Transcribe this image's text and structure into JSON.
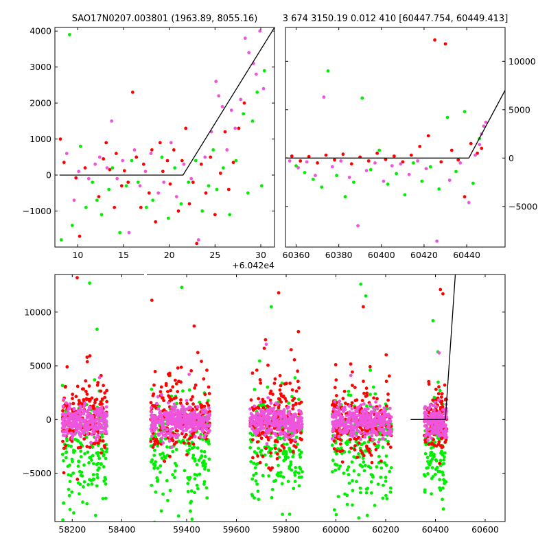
{
  "titles": {
    "left": "SAO17N0207.003801 (1963.89, 8055.16)",
    "right": "3 674 3150.19 0.012 410 [60447.754, 60449.413]"
  },
  "colors": {
    "series_a": "#ff0000",
    "series_b": "#00ee00",
    "series_c": "#ee55dd",
    "model": "#000000"
  },
  "chart_data": [
    {
      "id": "top-left",
      "type": "scatter",
      "x_offset_label": "+6.042e4",
      "x_offset": 60420,
      "xlim": [
        7.5,
        31.5
      ],
      "ylim": [
        -2000,
        4100
      ],
      "xticks": [
        10,
        15,
        20,
        25,
        30
      ],
      "xtick_labels": [
        "10",
        "15",
        "20",
        "25",
        "30"
      ],
      "yticks": [
        -1000,
        0,
        1000,
        2000,
        3000,
        4000
      ],
      "ytick_labels": [
        "−1000",
        "0",
        "1000",
        "2000",
        "3000",
        "4000"
      ],
      "ytick_side": "left",
      "model_line": {
        "x": [
          8,
          21.5,
          31.5
        ],
        "y": [
          0,
          0,
          4100
        ]
      },
      "series": [
        {
          "color_key": "series_a",
          "x": [
            8.1,
            8.5,
            9.8,
            10.2,
            10.8,
            12.3,
            12.8,
            13.1,
            13.5,
            14.0,
            14.2,
            14.8,
            15.1,
            15.5,
            16.0,
            16.4,
            16.9,
            17.2,
            17.8,
            18.1,
            18.5,
            19.0,
            19.3,
            19.8,
            20.1,
            20.5,
            21.0,
            21.4,
            21.8,
            22.2,
            22.6,
            23.0,
            23.5,
            24.0,
            24.5,
            25.0,
            25.6,
            26.1,
            26.5,
            27.0,
            27.6,
            28.2
          ],
          "y": [
            1000,
            350,
            -80,
            -1700,
            200,
            -600,
            450,
            900,
            150,
            -900,
            600,
            -300,
            120,
            -200,
            2300,
            500,
            -900,
            300,
            -500,
            700,
            -1300,
            900,
            100,
            400,
            -250,
            700,
            -1000,
            400,
            1300,
            -800,
            -200,
            -1900,
            300,
            -500,
            500,
            -1100,
            50,
            1200,
            -400,
            350,
            1300,
            2000
          ]
        },
        {
          "color_key": "series_b",
          "x": [
            8.2,
            9.1,
            9.4,
            10.3,
            10.9,
            11.6,
            12.1,
            12.6,
            13.4,
            13.8,
            14.6,
            15.3,
            15.9,
            16.6,
            17.5,
            18.2,
            19.2,
            19.9,
            20.6,
            21.3,
            22.1,
            22.9,
            23.6,
            24.3,
            24.8,
            25.2,
            25.9,
            26.6,
            27.3,
            28.1,
            28.6,
            29.1,
            29.6,
            30.1,
            30.4
          ],
          "y": [
            -1800,
            3900,
            -1400,
            800,
            -900,
            -200,
            -700,
            -1100,
            -400,
            200,
            -1600,
            -300,
            400,
            -200,
            -900,
            -700,
            500,
            -1200,
            200,
            -800,
            -200,
            400,
            -1000,
            -300,
            700,
            -400,
            200,
            -1100,
            400,
            1700,
            -500,
            1500,
            2300,
            -300,
            2900
          ]
        },
        {
          "color_key": "series_c",
          "x": [
            8.8,
            9.6,
            10.1,
            11.2,
            11.9,
            12.4,
            13.2,
            13.7,
            14.3,
            14.9,
            15.6,
            16.2,
            16.8,
            17.4,
            18.0,
            18.8,
            19.4,
            20.2,
            20.8,
            21.6,
            22.4,
            23.2,
            23.9,
            24.6,
            25.1,
            25.4,
            25.8,
            26.3,
            26.8,
            27.2,
            27.8,
            28.3,
            28.7,
            29.2,
            29.5,
            29.9,
            30.3
          ],
          "y": [
            600,
            -700,
            100,
            -100,
            300,
            500,
            200,
            1500,
            -100,
            400,
            -1600,
            700,
            -300,
            100,
            600,
            -500,
            -200,
            900,
            -600,
            300,
            -100,
            -1800,
            500,
            1200,
            2600,
            2200,
            1900,
            700,
            1800,
            1300,
            2100,
            3800,
            3400,
            3100,
            2800,
            4000,
            2400
          ]
        }
      ]
    },
    {
      "id": "top-right",
      "type": "scatter",
      "xlim": [
        60355,
        60458
      ],
      "ylim": [
        -9200,
        13500
      ],
      "xticks": [
        60360,
        60380,
        60400,
        60420,
        60440
      ],
      "xtick_labels": [
        "60360",
        "60380",
        "60400",
        "60420",
        "60440"
      ],
      "yticks": [
        -5000,
        0,
        5000,
        10000
      ],
      "ytick_labels": [
        "−5000",
        "0",
        "5000",
        "10000"
      ],
      "ytick_side": "right",
      "model_line": {
        "x": [
          60355,
          60441,
          60458
        ],
        "y": [
          0,
          0,
          7000
        ]
      },
      "series": [
        {
          "color_key": "series_a",
          "x": [
            60358,
            60362,
            60366,
            60370,
            60374,
            60378,
            60382,
            60386,
            60390,
            60394,
            60398,
            60402,
            60406,
            60410,
            60414,
            60418,
            60422,
            60425,
            60428,
            60430,
            60433,
            60436,
            60439,
            60442,
            60445,
            60447
          ],
          "y": [
            200,
            -300,
            150,
            -500,
            300,
            -200,
            400,
            -600,
            100,
            -300,
            500,
            -150,
            200,
            -400,
            300,
            1200,
            2300,
            12200,
            -400,
            11800,
            800,
            -200,
            -4000,
            1500,
            500,
            1000
          ]
        },
        {
          "color_key": "series_b",
          "x": [
            60360,
            60364,
            60368,
            60372,
            60375,
            60379,
            60383,
            60387,
            60391,
            60395,
            60399,
            60403,
            60407,
            60411,
            60415,
            60419,
            60423,
            60427,
            60431,
            60435,
            60439,
            60443,
            60446
          ],
          "y": [
            -800,
            -1500,
            -2200,
            -3000,
            9000,
            -1800,
            -4000,
            -2500,
            6200,
            -1200,
            800,
            -2700,
            -1600,
            -3800,
            -500,
            -2400,
            -900,
            -3200,
            4200,
            -1400,
            4800,
            -2600,
            2000
          ]
        },
        {
          "color_key": "series_c",
          "x": [
            60357,
            60361,
            60365,
            60369,
            60373,
            60377,
            60381,
            60385,
            60389,
            60393,
            60397,
            60401,
            60405,
            60409,
            60413,
            60417,
            60421,
            60426,
            60432,
            60437,
            60441,
            60444,
            60446,
            60447,
            60448,
            60449
          ],
          "y": [
            -300,
            -1000,
            -400,
            -1800,
            6300,
            -900,
            -300,
            -2000,
            -7000,
            -1300,
            -500,
            -2400,
            -800,
            -600,
            -1700,
            -300,
            -1100,
            -8600,
            -2300,
            -500,
            -4600,
            300,
            1400,
            2500,
            3300,
            3700
          ]
        }
      ]
    },
    {
      "id": "bottom",
      "type": "scatter",
      "segments": [
        {
          "xlim": [
            58130,
            58490
          ],
          "xticks": [
            58200,
            58400
          ],
          "xtick_labels": [
            "58200",
            "58400"
          ]
        },
        {
          "xlim": [
            59240,
            60680
          ],
          "xticks": [
            59400,
            59600,
            59800,
            60000,
            60200,
            60400,
            60600
          ],
          "xtick_labels": [
            "59400",
            "59600",
            "59800",
            "60000",
            "60200",
            "60400",
            "60600"
          ]
        }
      ],
      "ylim": [
        -9500,
        13500
      ],
      "yticks": [
        -5000,
        0,
        5000,
        10000
      ],
      "ytick_labels": [
        "−5000",
        "0",
        "5000",
        "10000"
      ],
      "ytick_side": "left",
      "model_line": {
        "x": [
          60300,
          60440,
          60480
        ],
        "y": [
          0,
          0,
          13500
        ]
      },
      "clusters": [
        {
          "range": [
            58160,
            58340
          ],
          "count": 180
        },
        {
          "range": [
            59255,
            59495
          ],
          "count": 220
        },
        {
          "range": [
            59655,
            59865
          ],
          "count": 200
        },
        {
          "range": [
            59985,
            60225
          ],
          "count": 220
        },
        {
          "range": [
            60355,
            60445
          ],
          "count": 120
        }
      ],
      "outliers": [
        {
          "color_key": "series_a",
          "x": [
            58220,
            58260,
            59260,
            59330,
            59430,
            59770,
            59820,
            60110,
            60420,
            60430
          ],
          "y": [
            13200,
            5800,
            11100,
            4100,
            8700,
            11800,
            6500,
            10500,
            12100,
            11700
          ]
        },
        {
          "color_key": "series_b",
          "x": [
            58270,
            58300,
            59380,
            59740,
            60100,
            60120,
            60390,
            60410
          ],
          "y": [
            12700,
            8400,
            12300,
            10500,
            12600,
            11500,
            9200,
            6300
          ]
        },
        {
          "color_key": "series_c",
          "x": [
            58310,
            59410,
            59720,
            60060,
            60415
          ],
          "y": [
            3900,
            4200,
            7000,
            4100,
            6200
          ]
        }
      ]
    }
  ]
}
